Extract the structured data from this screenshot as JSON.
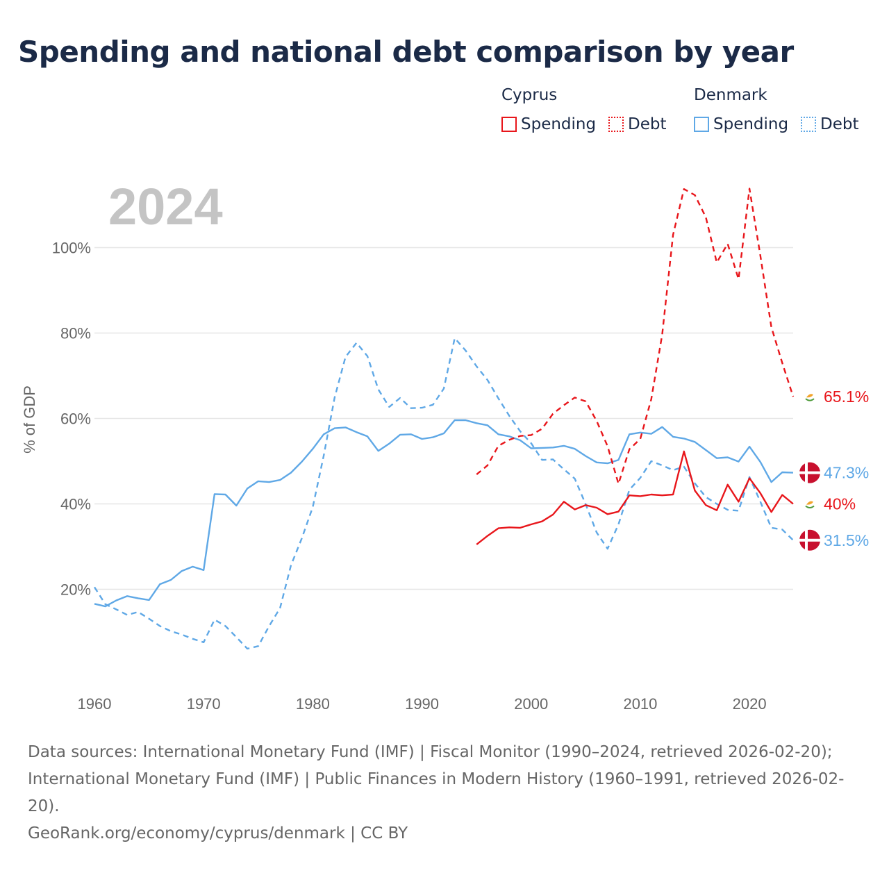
{
  "title": "Spending and national debt comparison by year",
  "legend": {
    "groups": [
      {
        "country": "Cyprus",
        "items": [
          "Spending",
          "Debt"
        ]
      },
      {
        "country": "Denmark",
        "items": [
          "Spending",
          "Debt"
        ]
      }
    ]
  },
  "colors": {
    "cyprus": "#e8161b",
    "denmark": "#5fa8e6",
    "grid": "#e6e6e6",
    "year_watermark": "#c4c4c4"
  },
  "chart_data": {
    "type": "line",
    "year_label": "2024",
    "ylabel": "% of GDP",
    "xlim": [
      1960,
      2024
    ],
    "ylim": [
      0,
      115
    ],
    "xticks": [
      1960,
      1970,
      1980,
      1990,
      2000,
      2010,
      2020
    ],
    "yticks": [
      20,
      40,
      60,
      80,
      100
    ],
    "ytick_labels": [
      "20%",
      "40%",
      "60%",
      "80%",
      "100%"
    ],
    "series": [
      {
        "name": "Denmark Spending",
        "country": "Denmark",
        "kind": "Spending",
        "style": "solid",
        "x": [
          1960,
          1961,
          1962,
          1963,
          1964,
          1965,
          1966,
          1967,
          1968,
          1969,
          1970,
          1971,
          1972,
          1973,
          1974,
          1975,
          1976,
          1977,
          1978,
          1979,
          1980,
          1981,
          1982,
          1983,
          1984,
          1985,
          1986,
          1987,
          1988,
          1989,
          1990,
          1991,
          1992,
          1993,
          1994,
          1995,
          1996,
          1997,
          1998,
          1999,
          2000,
          2001,
          2002,
          2003,
          2004,
          2005,
          2006,
          2007,
          2008,
          2009,
          2010,
          2011,
          2012,
          2013,
          2014,
          2015,
          2016,
          2017,
          2018,
          2019,
          2020,
          2021,
          2022,
          2023,
          2024
        ],
        "y": [
          16.6,
          16.0,
          17.4,
          18.4,
          17.9,
          17.5,
          21.2,
          22.2,
          24.3,
          25.3,
          24.5,
          42.3,
          42.2,
          39.6,
          43.6,
          45.3,
          45.1,
          45.6,
          47.3,
          49.9,
          52.9,
          56.3,
          57.7,
          57.9,
          56.8,
          55.8,
          52.4,
          54.1,
          56.2,
          56.3,
          55.2,
          55.6,
          56.5,
          59.6,
          59.6,
          58.9,
          58.4,
          56.3,
          55.8,
          54.9,
          53.0,
          53.1,
          53.2,
          53.6,
          52.9,
          51.2,
          49.7,
          49.5,
          50.3,
          56.3,
          56.7,
          56.4,
          58.0,
          55.7,
          55.3,
          54.5,
          52.6,
          50.7,
          50.9,
          49.9,
          53.4,
          49.8,
          45.1,
          47.4,
          47.3
        ],
        "end_label": "47.3%"
      },
      {
        "name": "Denmark Debt",
        "country": "Denmark",
        "kind": "Debt",
        "style": "dashed",
        "x": [
          1960,
          1961,
          1962,
          1963,
          1964,
          1965,
          1966,
          1967,
          1968,
          1969,
          1970,
          1971,
          1972,
          1973,
          1974,
          1975,
          1976,
          1977,
          1978,
          1979,
          1980,
          1981,
          1982,
          1983,
          1984,
          1985,
          1986,
          1987,
          1988,
          1989,
          1990,
          1991,
          1992,
          1993,
          1994,
          1995,
          1996,
          1997,
          1998,
          1999,
          2000,
          2001,
          2002,
          2003,
          2004,
          2005,
          2006,
          2007,
          2008,
          2009,
          2010,
          2011,
          2012,
          2013,
          2014,
          2015,
          2016,
          2017,
          2018,
          2019,
          2020,
          2021,
          2022,
          2023,
          2024
        ],
        "y": [
          20.5,
          16.5,
          15.3,
          14.0,
          14.7,
          13.1,
          11.4,
          10.2,
          9.4,
          8.4,
          7.6,
          12.9,
          11.4,
          8.8,
          6.1,
          6.7,
          11.4,
          15.6,
          25.6,
          32.0,
          39.3,
          51.3,
          64.9,
          74.4,
          77.7,
          74.6,
          66.8,
          62.7,
          64.8,
          62.4,
          62.5,
          63.2,
          67.0,
          78.8,
          75.9,
          72.2,
          69.0,
          64.7,
          60.6,
          57.0,
          54.2,
          50.3,
          50.4,
          48.1,
          45.9,
          39.9,
          33.3,
          29.5,
          35.2,
          43.3,
          46.1,
          50.0,
          49.0,
          47.9,
          48.7,
          44.8,
          41.6,
          40.0,
          38.6,
          38.4,
          46.3,
          40.5,
          34.4,
          34.0,
          31.5
        ],
        "end_label": "31.5%"
      },
      {
        "name": "Cyprus Spending",
        "country": "Cyprus",
        "kind": "Spending",
        "style": "solid",
        "x": [
          1995,
          1996,
          1997,
          1998,
          1999,
          2000,
          2001,
          2002,
          2003,
          2004,
          2005,
          2006,
          2007,
          2008,
          2009,
          2010,
          2011,
          2012,
          2013,
          2014,
          2015,
          2016,
          2017,
          2018,
          2019,
          2020,
          2021,
          2022,
          2023,
          2024
        ],
        "y": [
          30.5,
          32.5,
          34.3,
          34.5,
          34.4,
          35.2,
          35.9,
          37.5,
          40.5,
          38.7,
          39.7,
          39.1,
          37.6,
          38.2,
          42.0,
          41.8,
          42.2,
          42.0,
          42.2,
          52.3,
          43.1,
          39.7,
          38.5,
          44.5,
          40.5,
          46.0,
          42.5,
          38.1,
          42.1,
          40.0
        ],
        "end_label": "40%"
      },
      {
        "name": "Cyprus Debt",
        "country": "Cyprus",
        "kind": "Debt",
        "style": "dashed",
        "x": [
          1995,
          1996,
          1997,
          1998,
          1999,
          2000,
          2001,
          2002,
          2003,
          2004,
          2005,
          2006,
          2007,
          2008,
          2009,
          2010,
          2011,
          2012,
          2013,
          2014,
          2015,
          2016,
          2017,
          2018,
          2019,
          2020,
          2021,
          2022,
          2023,
          2024
        ],
        "y": [
          46.9,
          49.0,
          53.6,
          55.0,
          55.9,
          56.1,
          57.6,
          61.1,
          63.1,
          64.9,
          64.0,
          59.4,
          53.5,
          44.7,
          52.8,
          55.2,
          64.5,
          79.6,
          103.0,
          113.7,
          112.3,
          107.1,
          96.5,
          100.9,
          92.6,
          113.8,
          98.1,
          81.4,
          73.0,
          65.1
        ],
        "end_label": "65.1%"
      }
    ]
  },
  "footer": {
    "sources": "Data sources: International Monetary Fund (IMF) | Fiscal Monitor (1990–2024, retrieved 2026-02-20); International Monetary Fund (IMF) | Public Finances in Modern History (1960–1991, retrieved 2026-02-20).",
    "credit": "GeoRank.org/economy/cyprus/denmark | CC BY"
  }
}
